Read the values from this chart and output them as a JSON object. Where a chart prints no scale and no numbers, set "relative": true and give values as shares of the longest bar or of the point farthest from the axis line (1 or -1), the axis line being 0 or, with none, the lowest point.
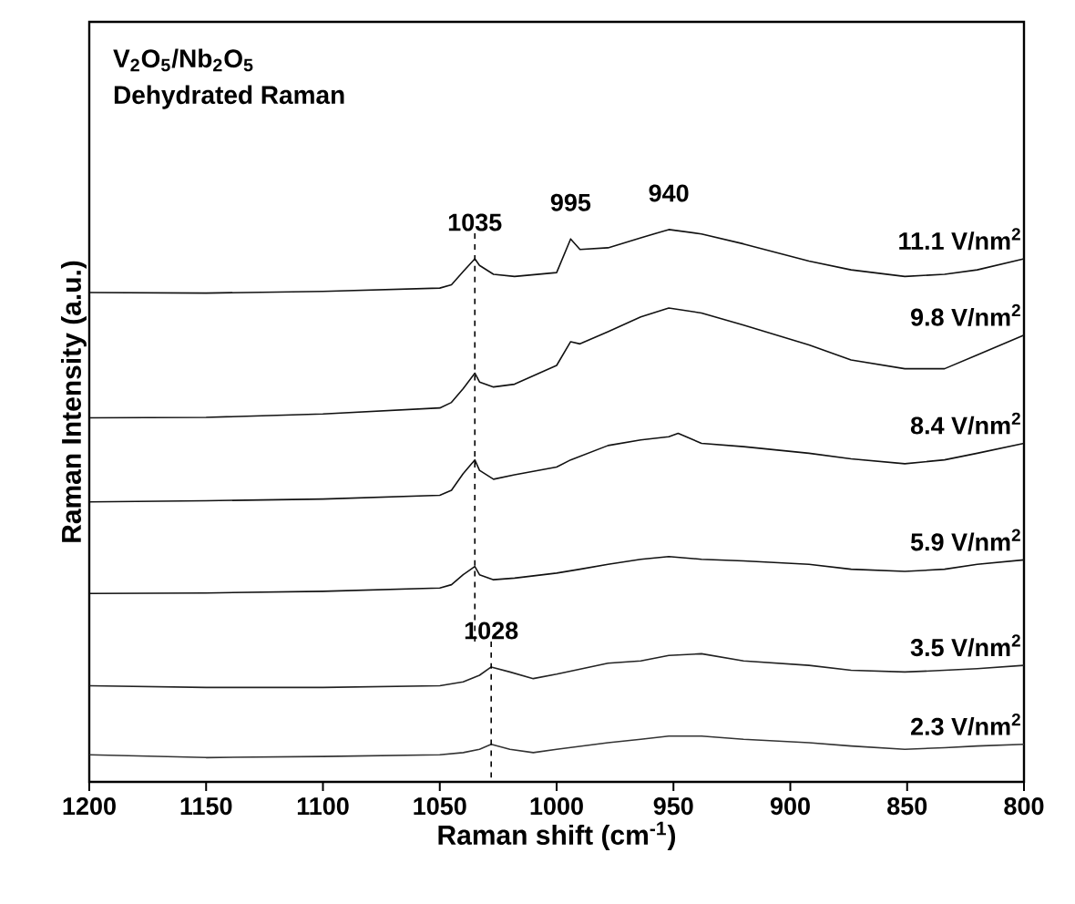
{
  "chart_data": {
    "type": "line",
    "relative": true,
    "title": "V$_{2}$O$_{5}$/Nb$_{2}$O$_{5}$",
    "subtitle": "Dehydrated Raman",
    "xlabel": "Raman shift (cm$^{-1}$)",
    "ylabel": "Raman Intensity (a.u.)",
    "xlim": [
      1200,
      800
    ],
    "xticks": [
      1200,
      1150,
      1100,
      1050,
      1000,
      950,
      900,
      850,
      800
    ],
    "legend": false,
    "marker": "none",
    "line_style": "solid",
    "grid": false,
    "series": [
      {
        "name": "11.1 V/nm$^{2}$",
        "color": "#111111",
        "x": [
          1200,
          1150,
          1100,
          1050,
          1045,
          1040,
          1035,
          1033,
          1027,
          1018,
          1000,
          994,
          990,
          978,
          964,
          952,
          938,
          920,
          892,
          874,
          851,
          834,
          820,
          800
        ],
        "values": [
          0.886,
          0.885,
          0.888,
          0.894,
          0.9,
          0.924,
          0.947,
          0.935,
          0.919,
          0.915,
          0.922,
          0.983,
          0.964,
          0.967,
          0.985,
          1,
          0.992,
          0.974,
          0.943,
          0.927,
          0.915,
          0.919,
          0.927,
          0.947
        ]
      },
      {
        "name": "9.8 V/nm$^{2}$",
        "color": "#111111",
        "x": [
          1200,
          1150,
          1100,
          1050,
          1045,
          1040,
          1035,
          1033,
          1027,
          1018,
          1000,
          994,
          990,
          978,
          964,
          952,
          938,
          920,
          892,
          874,
          851,
          834,
          820,
          800
        ],
        "values": [
          0.659,
          0.66,
          0.666,
          0.677,
          0.687,
          0.712,
          0.74,
          0.724,
          0.715,
          0.72,
          0.754,
          0.797,
          0.793,
          0.815,
          0.842,
          0.858,
          0.849,
          0.827,
          0.791,
          0.764,
          0.748,
          0.748,
          0.773,
          0.809
        ]
      },
      {
        "name": "8.4 V/nm$^{2}$",
        "color": "#111111",
        "x": [
          1200,
          1150,
          1100,
          1050,
          1045,
          1040,
          1035,
          1033,
          1027,
          1018,
          1000,
          994,
          978,
          964,
          952,
          948,
          938,
          920,
          892,
          874,
          851,
          834,
          820,
          800
        ],
        "values": [
          0.507,
          0.509,
          0.512,
          0.519,
          0.528,
          0.558,
          0.583,
          0.564,
          0.548,
          0.556,
          0.57,
          0.583,
          0.609,
          0.619,
          0.625,
          0.631,
          0.613,
          0.607,
          0.595,
          0.585,
          0.576,
          0.583,
          0.595,
          0.613
        ]
      },
      {
        "name": "5.9 V/nm$^{2}$",
        "color": "#111111",
        "x": [
          1200,
          1150,
          1100,
          1050,
          1045,
          1040,
          1035,
          1033,
          1027,
          1018,
          1000,
          990,
          978,
          964,
          952,
          938,
          920,
          892,
          874,
          851,
          834,
          820,
          800
        ],
        "values": [
          0.341,
          0.342,
          0.345,
          0.351,
          0.357,
          0.375,
          0.39,
          0.375,
          0.366,
          0.369,
          0.378,
          0.385,
          0.394,
          0.403,
          0.408,
          0.403,
          0.4,
          0.394,
          0.385,
          0.381,
          0.385,
          0.394,
          0.402
        ]
      },
      {
        "name": "3.5 V/nm$^{2}$",
        "color": "#222222",
        "x": [
          1200,
          1150,
          1100,
          1050,
          1040,
          1033,
          1028,
          1020,
          1010,
          1000,
          978,
          964,
          952,
          938,
          920,
          892,
          874,
          851,
          834,
          820,
          800
        ],
        "values": [
          0.174,
          0.171,
          0.171,
          0.174,
          0.181,
          0.193,
          0.208,
          0.199,
          0.187,
          0.195,
          0.215,
          0.219,
          0.229,
          0.232,
          0.219,
          0.211,
          0.202,
          0.199,
          0.202,
          0.205,
          0.211
        ]
      },
      {
        "name": "2.3 V/nm$^{2}$",
        "color": "#333333",
        "x": [
          1200,
          1150,
          1100,
          1050,
          1040,
          1033,
          1028,
          1020,
          1010,
          1000,
          978,
          964,
          952,
          938,
          920,
          892,
          874,
          851,
          834,
          820,
          800
        ],
        "values": [
          0.049,
          0.044,
          0.046,
          0.049,
          0.053,
          0.059,
          0.068,
          0.059,
          0.053,
          0.059,
          0.071,
          0.077,
          0.083,
          0.083,
          0.077,
          0.071,
          0.065,
          0.059,
          0.062,
          0.065,
          0.068
        ]
      }
    ],
    "annotations": [
      {
        "text": "1035",
        "x": 1035,
        "y": 0.947
      },
      {
        "text": "995",
        "x": 994,
        "y": 0.983
      },
      {
        "text": "940",
        "x": 952,
        "y": 1
      },
      {
        "text": "1028",
        "x": 1028,
        "y": 0.208
      }
    ],
    "ref_lines": [
      {
        "axis": "x",
        "value": 1035,
        "line_style": "dashed",
        "color": "#000000"
      },
      {
        "axis": "x",
        "value": 1028,
        "line_style": "dashed",
        "color": "#000000"
      }
    ]
  }
}
